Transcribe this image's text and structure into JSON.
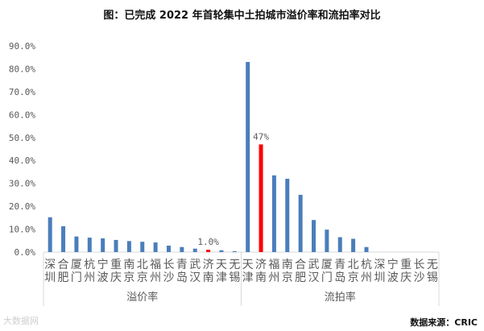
{
  "title": "图：已完成 2022 年首轮集中土拍城市溢价率和流拍率对比",
  "source": "数据来源：CRIC",
  "watermark": "大数据网",
  "colors": {
    "bar": "#4a7ebb",
    "highlight": "#ff0000",
    "axis_text": "#595959",
    "axis_line": "#d9d9d9"
  },
  "chart_data": {
    "type": "bar",
    "ylim": [
      0,
      90
    ],
    "yticks": [
      "0.0%",
      "10.0%",
      "20.0%",
      "30.0%",
      "40.0%",
      "50.0%",
      "60.0%",
      "70.0%",
      "80.0%",
      "90.0%"
    ],
    "groups": [
      {
        "name": "溢价率",
        "categories": [
          "深圳",
          "合肥",
          "厦门",
          "杭州",
          "宁波",
          "重庆",
          "南京",
          "北京",
          "福州",
          "长沙",
          "青岛",
          "武汉",
          "济南",
          "天津",
          "无锡"
        ],
        "values": [
          15.2,
          11.3,
          6.8,
          6.3,
          6.0,
          5.3,
          4.8,
          4.5,
          4.2,
          2.8,
          2.2,
          1.5,
          1.0,
          0.8,
          0.4
        ],
        "highlight_index": 12,
        "highlight_label": "1.0%"
      },
      {
        "name": "流拍率",
        "categories": [
          "天津",
          "济南",
          "福州",
          "南京",
          "合肥",
          "武汉",
          "厦门",
          "青岛",
          "北京",
          "杭州",
          "深圳",
          "宁波",
          "重庆",
          "长沙",
          "无锡"
        ],
        "values": [
          83.0,
          47.0,
          33.5,
          32.0,
          25.0,
          14.0,
          9.8,
          6.5,
          5.8,
          2.2,
          0,
          0,
          0,
          0,
          0
        ],
        "highlight_index": 1,
        "highlight_label": "47%"
      }
    ]
  }
}
